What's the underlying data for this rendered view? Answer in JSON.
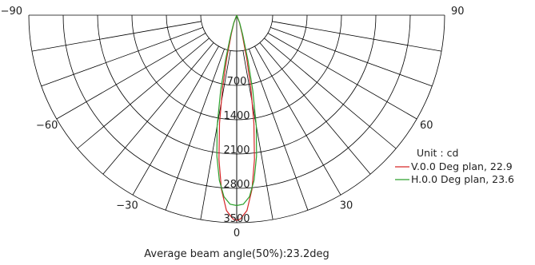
{
  "chart_data": {
    "type": "polar",
    "unit_label": "Unit : cd",
    "footer": "Average beam angle(50%):23.2deg",
    "angle_ticks": [
      {
        "angle": -90,
        "label": "−90"
      },
      {
        "angle": -60,
        "label": "−60"
      },
      {
        "angle": -30,
        "label": "−30"
      },
      {
        "angle": 0,
        "label": "0"
      },
      {
        "angle": 30,
        "label": "30"
      },
      {
        "angle": 60,
        "label": "60"
      },
      {
        "angle": 90,
        "label": "90"
      }
    ],
    "radial_ticks": [
      {
        "value": 700,
        "label": "700"
      },
      {
        "value": 1400,
        "label": "1400"
      },
      {
        "value": 2100,
        "label": "2100"
      },
      {
        "value": 2800,
        "label": "2800"
      },
      {
        "value": 3500,
        "label": "3500"
      }
    ],
    "r_max": 3500,
    "angle_grid_step": 10,
    "series": [
      {
        "name": "V.0.0 Deg plan, 22.9",
        "color": "#d62728",
        "points": [
          [
            -25,
            0
          ],
          [
            -20,
            140
          ],
          [
            -16,
            330
          ],
          [
            -13,
            750
          ],
          [
            -11,
            1250
          ],
          [
            -9,
            1850
          ],
          [
            -7,
            2450
          ],
          [
            -5,
            2950
          ],
          [
            -3,
            3300
          ],
          [
            -1,
            3440
          ],
          [
            0,
            3460
          ],
          [
            1,
            3440
          ],
          [
            3,
            3300
          ],
          [
            5,
            2950
          ],
          [
            7,
            2450
          ],
          [
            9,
            1850
          ],
          [
            11,
            1250
          ],
          [
            13,
            750
          ],
          [
            16,
            330
          ],
          [
            20,
            140
          ],
          [
            25,
            0
          ]
        ]
      },
      {
        "name": "H.0.0 Deg plan, 23.6",
        "color": "#2ca02c",
        "points": [
          [
            -26,
            0
          ],
          [
            -21,
            140
          ],
          [
            -17,
            340
          ],
          [
            -14,
            780
          ],
          [
            -12,
            1300
          ],
          [
            -10,
            1900
          ],
          [
            -8,
            2400
          ],
          [
            -6,
            2800
          ],
          [
            -4,
            3070
          ],
          [
            -2,
            3190
          ],
          [
            0,
            3210
          ],
          [
            2,
            3190
          ],
          [
            4,
            3070
          ],
          [
            6,
            2800
          ],
          [
            8,
            2400
          ],
          [
            10,
            1900
          ],
          [
            12,
            1300
          ],
          [
            14,
            780
          ],
          [
            17,
            340
          ],
          [
            21,
            140
          ],
          [
            26,
            0
          ]
        ]
      }
    ]
  }
}
